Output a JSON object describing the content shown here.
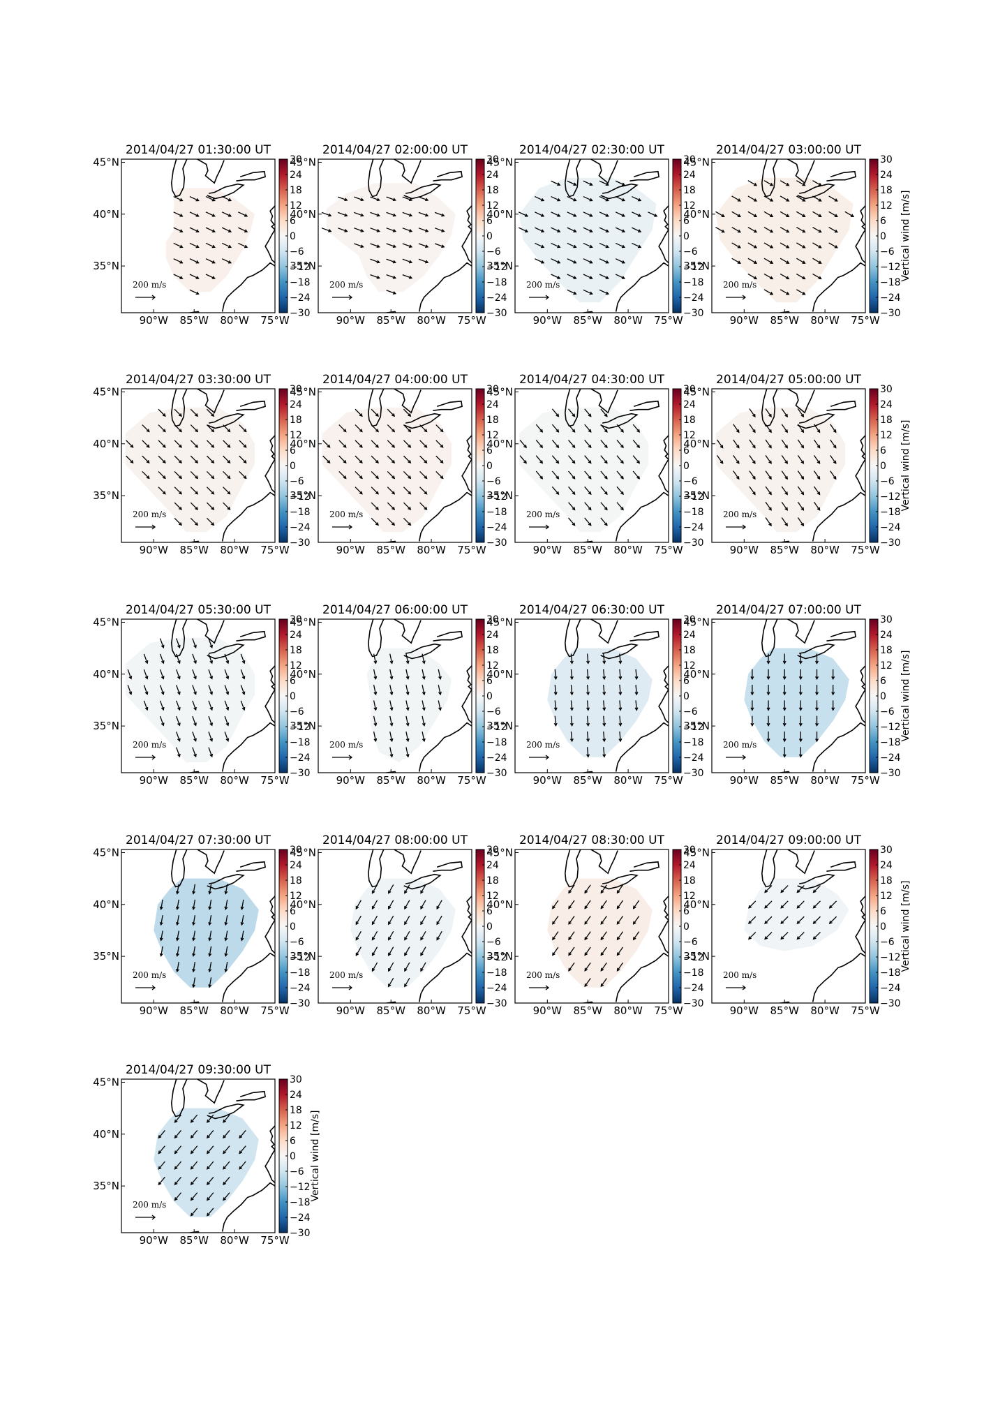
{
  "chart_data": {
    "type": "heatmap",
    "description_units": "Vertical wind in m/s, horizontal wind vectors",
    "colorbar": {
      "label": "Vertical wind [m/s]",
      "min": -30,
      "max": 30,
      "ticks": [
        30,
        24,
        18,
        12,
        6,
        0,
        -6,
        -12,
        -18,
        -24,
        -30
      ],
      "tick_labels": [
        "30",
        "24",
        "18",
        "12",
        "6",
        "0",
        "−6",
        "−12",
        "−18",
        "−24",
        "−30"
      ]
    },
    "x_ticks": [
      "90°W",
      "85°W",
      "80°W",
      "75°W"
    ],
    "y_ticks": [
      "45°N",
      "40°N",
      "35°N"
    ],
    "scale_label": "200 m/s",
    "scale_colors": {
      "neg_strong": "#2166ac",
      "neutral": "#f7f7f7",
      "pos_strong": "#b2182b"
    },
    "panels": [
      {
        "title": "2014/04/27 01:30:00 UT",
        "vertical_wind": 1.5,
        "wind_dir_deg": 25,
        "shape": "a",
        "colorbar_label": false
      },
      {
        "title": "2014/04/27 02:00:00 UT",
        "vertical_wind": 0.8,
        "wind_dir_deg": 20,
        "shape": "b",
        "colorbar_label": false
      },
      {
        "title": "2014/04/27 02:30:00 UT",
        "vertical_wind": -2.0,
        "wind_dir_deg": 25,
        "shape": "c",
        "colorbar_label": false
      },
      {
        "title": "2014/04/27 03:00:00 UT",
        "vertical_wind": 1.8,
        "wind_dir_deg": 30,
        "shape": "c",
        "colorbar_label": true
      },
      {
        "title": "2014/04/27 03:30:00 UT",
        "vertical_wind": 1.0,
        "wind_dir_deg": 45,
        "shape": "d",
        "colorbar_label": false
      },
      {
        "title": "2014/04/27 04:00:00 UT",
        "vertical_wind": 1.2,
        "wind_dir_deg": 45,
        "shape": "d",
        "colorbar_label": false
      },
      {
        "title": "2014/04/27 04:30:00 UT",
        "vertical_wind": -0.5,
        "wind_dir_deg": 50,
        "shape": "d",
        "colorbar_label": false
      },
      {
        "title": "2014/04/27 05:00:00 UT",
        "vertical_wind": 1.0,
        "wind_dir_deg": 55,
        "shape": "d",
        "colorbar_label": true
      },
      {
        "title": "2014/04/27 05:30:00 UT",
        "vertical_wind": -0.8,
        "wind_dir_deg": 70,
        "shape": "d",
        "colorbar_label": false
      },
      {
        "title": "2014/04/27 06:00:00 UT",
        "vertical_wind": -0.8,
        "wind_dir_deg": 78,
        "shape": "e",
        "colorbar_label": false
      },
      {
        "title": "2014/04/27 06:30:00 UT",
        "vertical_wind": -4.0,
        "wind_dir_deg": 85,
        "shape": "f",
        "colorbar_label": false
      },
      {
        "title": "2014/04/27 07:00:00 UT",
        "vertical_wind": -7.0,
        "wind_dir_deg": 90,
        "shape": "f",
        "colorbar_label": true
      },
      {
        "title": "2014/04/27 07:30:00 UT",
        "vertical_wind": -8.0,
        "wind_dir_deg": 100,
        "shape": "f",
        "colorbar_label": false
      },
      {
        "title": "2014/04/27 08:00:00 UT",
        "vertical_wind": -1.5,
        "wind_dir_deg": 120,
        "shape": "f",
        "colorbar_label": false
      },
      {
        "title": "2014/04/27 08:30:00 UT",
        "vertical_wind": 2.0,
        "wind_dir_deg": 125,
        "shape": "f",
        "colorbar_label": false
      },
      {
        "title": "2014/04/27 09:00:00 UT",
        "vertical_wind": -1.0,
        "wind_dir_deg": 135,
        "shape": "g",
        "colorbar_label": true
      },
      {
        "title": "2014/04/27 09:30:00 UT",
        "vertical_wind": -6.0,
        "wind_dir_deg": 130,
        "shape": "f",
        "colorbar_label": true
      }
    ]
  }
}
